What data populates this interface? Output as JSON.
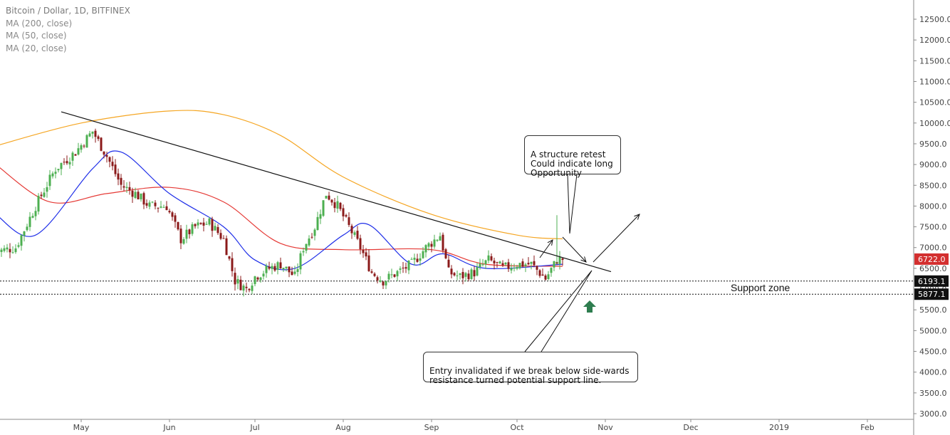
{
  "header": {
    "title": "Bitcoin / Dollar, 1D, BITFINEX",
    "indicators": [
      "MA (200, close)",
      "MA (50, close)",
      "MA (20, close)"
    ]
  },
  "annotations": {
    "structure_retest": "A structure retest\nCould indicate long\nOpportunity",
    "entry_invalidated": "Entry invalidated if we break below side-wards\nresistance turned potential support line.",
    "support_zone": "Support zone"
  },
  "price_tags": {
    "last": "6722.0",
    "upper_support": "6193.1",
    "lower_support": "5877.1"
  },
  "colors": {
    "up": "#4caf50",
    "down": "#8b1a1a",
    "ma200": "#f5a623",
    "ma50": "#e53935",
    "ma20": "#1e2ee8",
    "last_tag": "#d32f2f",
    "support_arrow": "#2e7d4f"
  },
  "chart_data": {
    "type": "candlestick",
    "x_axis": {
      "labels": [
        "May",
        "Jun",
        "Jul",
        "Aug",
        "Sep",
        "Oct",
        "Nov",
        "Dec",
        "2019",
        "Feb"
      ],
      "label_dates": [
        "2018-05-01",
        "2018-06-01",
        "2018-07-01",
        "2018-08-01",
        "2018-09-01",
        "2018-10-01",
        "2018-11-01",
        "2018-12-01",
        "2019-01-01",
        "2019-02-01"
      ],
      "start_date": "2018-04-01",
      "end_date": "2019-02-28"
    },
    "y_axis": {
      "min": 3000,
      "max": 12500,
      "ticks": [
        "3000.0",
        "3500.0",
        "4000.0",
        "4500.0",
        "5000.0",
        "5500.0",
        "6000.0",
        "6500.0",
        "7000.0",
        "7500.0",
        "8000.0",
        "8500.0",
        "9000.0",
        "9500.0",
        "10000.0",
        "10500.0",
        "11000.0",
        "11500.0",
        "12000.0",
        "12500.0"
      ]
    },
    "close_anchors": [
      {
        "date": "2018-04-01",
        "value": 6900
      },
      {
        "date": "2018-04-08",
        "value": 7000
      },
      {
        "date": "2018-04-15",
        "value": 8000
      },
      {
        "date": "2018-04-22",
        "value": 8900
      },
      {
        "date": "2018-04-29",
        "value": 9300
      },
      {
        "date": "2018-05-05",
        "value": 9800
      },
      {
        "date": "2018-05-10",
        "value": 9200
      },
      {
        "date": "2018-05-15",
        "value": 8500
      },
      {
        "date": "2018-05-20",
        "value": 8300
      },
      {
        "date": "2018-05-25",
        "value": 8000
      },
      {
        "date": "2018-05-31",
        "value": 8000
      },
      {
        "date": "2018-06-05",
        "value": 7200
      },
      {
        "date": "2018-06-10",
        "value": 7500
      },
      {
        "date": "2018-06-15",
        "value": 7600
      },
      {
        "date": "2018-06-20",
        "value": 7200
      },
      {
        "date": "2018-06-24",
        "value": 6200
      },
      {
        "date": "2018-06-28",
        "value": 6000
      },
      {
        "date": "2018-07-01",
        "value": 6300
      },
      {
        "date": "2018-07-06",
        "value": 6500
      },
      {
        "date": "2018-07-10",
        "value": 6600
      },
      {
        "date": "2018-07-15",
        "value": 6300
      },
      {
        "date": "2018-07-18",
        "value": 7000
      },
      {
        "date": "2018-07-22",
        "value": 7500
      },
      {
        "date": "2018-07-26",
        "value": 8300
      },
      {
        "date": "2018-07-30",
        "value": 8000
      },
      {
        "date": "2018-08-03",
        "value": 7500
      },
      {
        "date": "2018-08-07",
        "value": 7000
      },
      {
        "date": "2018-08-11",
        "value": 6400
      },
      {
        "date": "2018-08-15",
        "value": 6200
      },
      {
        "date": "2018-08-20",
        "value": 6400
      },
      {
        "date": "2018-08-25",
        "value": 6600
      },
      {
        "date": "2018-08-30",
        "value": 7000
      },
      {
        "date": "2018-09-04",
        "value": 7300
      },
      {
        "date": "2018-09-07",
        "value": 6400
      },
      {
        "date": "2018-09-11",
        "value": 6300
      },
      {
        "date": "2018-09-16",
        "value": 6400
      },
      {
        "date": "2018-09-21",
        "value": 6700
      },
      {
        "date": "2018-09-26",
        "value": 6500
      },
      {
        "date": "2018-10-01",
        "value": 6600
      },
      {
        "date": "2018-10-06",
        "value": 6600
      },
      {
        "date": "2018-10-11",
        "value": 6250
      },
      {
        "date": "2018-10-15",
        "value": 6700
      },
      {
        "date": "2018-10-17",
        "value": 6722
      }
    ],
    "moving_averages": {
      "ma200": [
        {
          "date": "2018-04-01",
          "value": 9450
        },
        {
          "date": "2018-05-01",
          "value": 10000
        },
        {
          "date": "2018-06-01",
          "value": 10290
        },
        {
          "date": "2018-06-20",
          "value": 10200
        },
        {
          "date": "2018-07-10",
          "value": 9700
        },
        {
          "date": "2018-08-01",
          "value": 8700
        },
        {
          "date": "2018-09-01",
          "value": 7800
        },
        {
          "date": "2018-10-01",
          "value": 7300
        },
        {
          "date": "2018-10-17",
          "value": 7210
        }
      ],
      "ma50": [
        {
          "date": "2018-04-01",
          "value": 9000
        },
        {
          "date": "2018-04-20",
          "value": 8100
        },
        {
          "date": "2018-05-10",
          "value": 8300
        },
        {
          "date": "2018-06-01",
          "value": 8450
        },
        {
          "date": "2018-06-20",
          "value": 8100
        },
        {
          "date": "2018-07-10",
          "value": 7100
        },
        {
          "date": "2018-08-01",
          "value": 6950
        },
        {
          "date": "2018-09-01",
          "value": 6950
        },
        {
          "date": "2018-09-20",
          "value": 6600
        },
        {
          "date": "2018-10-17",
          "value": 6550
        }
      ],
      "ma20": [
        {
          "date": "2018-04-01",
          "value": 7800
        },
        {
          "date": "2018-04-15",
          "value": 7300
        },
        {
          "date": "2018-05-05",
          "value": 8900
        },
        {
          "date": "2018-05-15",
          "value": 9300
        },
        {
          "date": "2018-06-01",
          "value": 8300
        },
        {
          "date": "2018-06-20",
          "value": 7500
        },
        {
          "date": "2018-07-01",
          "value": 6700
        },
        {
          "date": "2018-07-15",
          "value": 6500
        },
        {
          "date": "2018-08-01",
          "value": 7300
        },
        {
          "date": "2018-08-10",
          "value": 7550
        },
        {
          "date": "2018-08-25",
          "value": 6600
        },
        {
          "date": "2018-09-05",
          "value": 6850
        },
        {
          "date": "2018-09-20",
          "value": 6500
        },
        {
          "date": "2018-10-17",
          "value": 6600
        }
      ]
    },
    "trendline": {
      "start": {
        "date": "2018-04-24",
        "value": 10270
      },
      "end": {
        "date": "2018-11-03",
        "value": 6420
      }
    },
    "support_levels": [
      6193.1,
      5877.1
    ],
    "grid": false
  }
}
